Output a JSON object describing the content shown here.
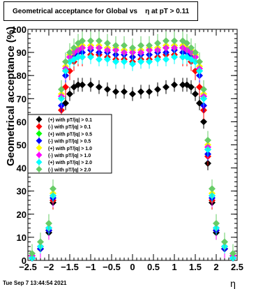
{
  "chart_data": {
    "type": "scatter",
    "title": "Geometrical acceptance for Global vs    η at pT > 0.11",
    "xlabel": "η",
    "ylabel": "Geometrical acceptance (%)",
    "xlim": [
      -2.5,
      2.5
    ],
    "ylim": [
      0,
      100
    ],
    "x_ticks": [
      "−2.5",
      "−2",
      "−1.5",
      "−1",
      "−0.5",
      "0",
      "0.5",
      "1",
      "1.5",
      "2",
      "2.5"
    ],
    "y_ticks": [
      "0",
      "10",
      "20",
      "30",
      "40",
      "50",
      "60",
      "70",
      "80",
      "90",
      "100"
    ],
    "legend_position": "middle-left",
    "x": [
      -2.4,
      -2.2,
      -2.0,
      -1.9,
      -1.8,
      -1.7,
      -1.6,
      -1.5,
      -1.4,
      -1.3,
      -1.2,
      -1.0,
      -0.8,
      -0.6,
      -0.4,
      -0.2,
      0.0,
      0.2,
      0.4,
      0.6,
      0.8,
      1.0,
      1.2,
      1.3,
      1.4,
      1.5,
      1.6,
      1.7,
      1.8,
      1.9,
      2.0,
      2.2,
      2.4
    ],
    "series": [
      {
        "name": "(+) with pT/|q| > 0.1",
        "color": "#000000",
        "values": [
          1,
          5,
          12,
          25,
          42,
          60,
          68,
          72,
          75,
          76,
          76,
          76,
          75,
          74,
          73,
          73,
          72,
          73,
          73,
          74,
          75,
          76,
          76,
          76,
          75,
          72,
          68,
          60,
          42,
          25,
          12,
          5,
          1
        ]
      },
      {
        "name": "(-) with pT/|q| > 0.1",
        "color": "#ff0000",
        "values": [
          1,
          5,
          13,
          26,
          45,
          65,
          75,
          82,
          86,
          88,
          88,
          89,
          89,
          88,
          87,
          87,
          86,
          87,
          87,
          88,
          89,
          89,
          88,
          88,
          86,
          82,
          75,
          65,
          45,
          26,
          13,
          5,
          1
        ]
      },
      {
        "name": "(+) with pT/|q| > 0.5",
        "color": "#00ff00",
        "values": [
          2,
          6,
          14,
          28,
          48,
          70,
          82,
          88,
          91,
          92,
          92,
          93,
          92,
          92,
          91,
          91,
          90,
          91,
          91,
          92,
          92,
          93,
          92,
          92,
          91,
          88,
          82,
          70,
          48,
          28,
          14,
          6,
          2
        ]
      },
      {
        "name": "(-) with pT/|q| > 0.5",
        "color": "#0000ff",
        "values": [
          1,
          5,
          13,
          27,
          46,
          67,
          80,
          86,
          89,
          90,
          90,
          91,
          90,
          90,
          89,
          89,
          88,
          89,
          89,
          90,
          90,
          91,
          90,
          90,
          89,
          86,
          80,
          67,
          46,
          27,
          13,
          5,
          1
        ]
      },
      {
        "name": "(+) with pT/|q| > 1.0",
        "color": "#ffff00",
        "values": [
          2,
          6,
          14,
          29,
          50,
          72,
          84,
          89,
          91,
          92,
          93,
          93,
          93,
          92,
          92,
          91,
          91,
          91,
          92,
          92,
          93,
          93,
          93,
          92,
          91,
          89,
          84,
          72,
          50,
          29,
          14,
          6,
          2
        ]
      },
      {
        "name": "(-) with pT/|q| > 1.0",
        "color": "#ff00ff",
        "values": [
          2,
          6,
          14,
          28,
          49,
          71,
          83,
          88,
          90,
          91,
          92,
          92,
          92,
          91,
          91,
          90,
          90,
          90,
          91,
          91,
          92,
          92,
          92,
          91,
          90,
          88,
          83,
          71,
          49,
          28,
          14,
          6,
          2
        ]
      },
      {
        "name": "(+) with pT/|q| > 2.0",
        "color": "#00ffff",
        "values": [
          1,
          6,
          14,
          28,
          48,
          70,
          82,
          86,
          87,
          88,
          88,
          88,
          87,
          87,
          86,
          86,
          85,
          86,
          86,
          87,
          87,
          88,
          88,
          88,
          87,
          86,
          82,
          70,
          48,
          28,
          14,
          6,
          1
        ]
      },
      {
        "name": "(-) with pT/|q| > 2.0",
        "color": "#66cc66",
        "values": [
          3,
          8,
          16,
          31,
          52,
          74,
          86,
          90,
          92,
          94,
          95,
          95,
          95,
          94,
          93,
          93,
          92,
          93,
          93,
          94,
          95,
          95,
          95,
          94,
          92,
          90,
          86,
          74,
          52,
          31,
          16,
          8,
          3
        ]
      }
    ]
  },
  "footer": {
    "timestamp": "Tue Sep  7 13:44:54 2021"
  }
}
